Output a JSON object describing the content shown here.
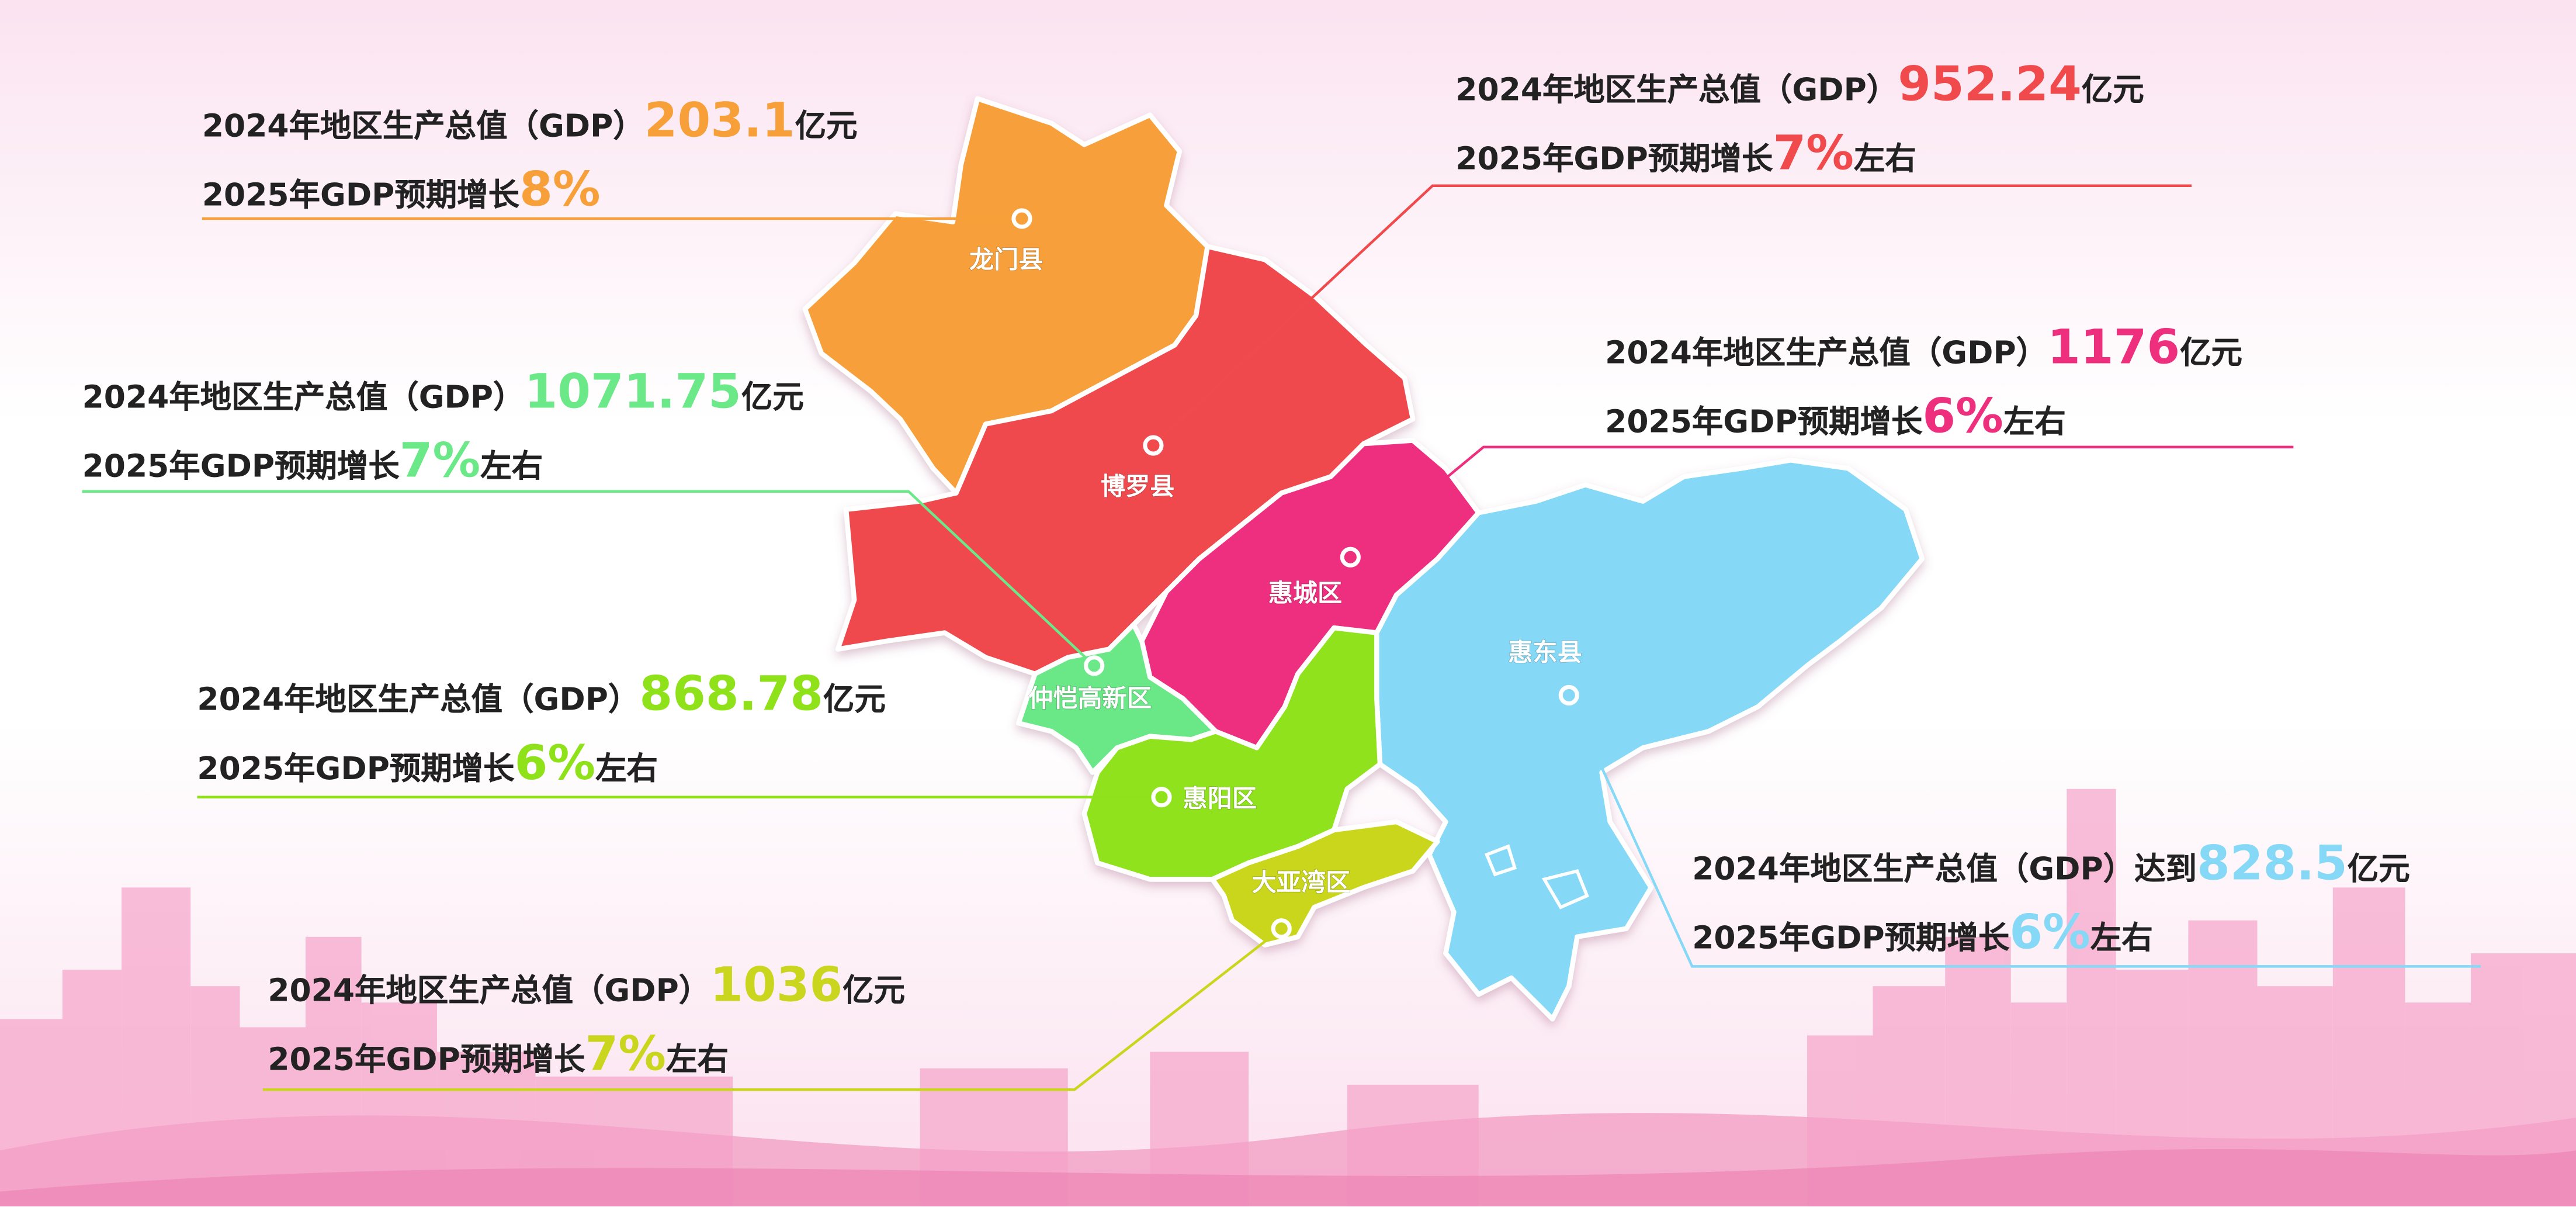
{
  "colors": {
    "longmen": "#f7a03a",
    "boluo": "#f04a4d",
    "huicheng": "#ee2f7e",
    "huidong": "#85d9f6",
    "zhongkai": "#6be887",
    "huiyang": "#8fe21a",
    "dayawan": "#cad61e",
    "background_pink": "#f6a8cc"
  },
  "regions": [
    {
      "name": "龙门县",
      "line1_prefix": "2024年地区生产总值（GDP）",
      "gdp": "203.1",
      "unit": "亿元",
      "line2_prefix": "2025年GDP预期增长",
      "growth": "8%",
      "line2_suffix": ""
    },
    {
      "name": "博罗县",
      "line1_prefix": "2024年地区生产总值（GDP）",
      "gdp": "952.24",
      "unit": "亿元",
      "line2_prefix": "2025年GDP预期增长",
      "growth": "7%",
      "line2_suffix": "左右"
    },
    {
      "name": "惠城区",
      "line1_prefix": "2024年地区生产总值（GDP）",
      "gdp": "1176",
      "unit": "亿元",
      "line2_prefix": "2025年GDP预期增长",
      "growth": "6%",
      "line2_suffix": "左右"
    },
    {
      "name": "仲恺高新区",
      "line1_prefix": "2024年地区生产总值（GDP）",
      "gdp": "1071.75",
      "unit": "亿元",
      "line2_prefix": "2025年GDP预期增长",
      "growth": "7%",
      "line2_suffix": "左右"
    },
    {
      "name": "惠阳区",
      "line1_prefix": "2024年地区生产总值（GDP）",
      "gdp": "868.78",
      "unit": "亿元",
      "line2_prefix": "2025年GDP预期增长",
      "growth": "6%",
      "line2_suffix": "左右"
    },
    {
      "name": "大亚湾区",
      "line1_prefix": "2024年地区生产总值（GDP）",
      "gdp": "1036",
      "unit": "亿元",
      "line2_prefix": "2025年GDP预期增长",
      "growth": "7%",
      "line2_suffix": "左右"
    },
    {
      "name": "惠东县",
      "line1_prefix": "2024年地区生产总值（GDP）达到",
      "gdp": "828.5",
      "unit": "亿元",
      "line2_prefix": "2025年GDP预期增长",
      "growth": "6%",
      "line2_suffix": "左右"
    }
  ]
}
